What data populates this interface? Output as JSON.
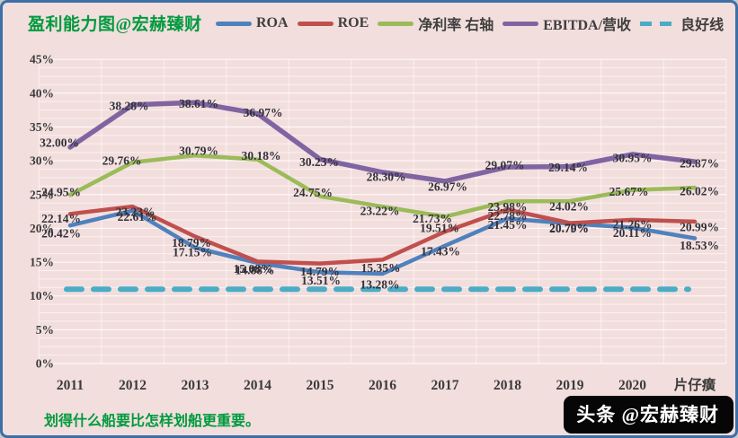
{
  "header": {
    "title": "盈利能力图@宏赫臻财",
    "legend": [
      {
        "label": "ROA",
        "color": "#4f81bd",
        "dashed": false
      },
      {
        "label": "ROE",
        "color": "#c0504d",
        "dashed": false
      },
      {
        "label": "净利率 右轴",
        "color": "#9bbb59",
        "dashed": false
      },
      {
        "label": "EBITDA/营收",
        "color": "#8064a2",
        "dashed": false
      },
      {
        "label": "良好线",
        "color": "#4bacc6",
        "dashed": true
      }
    ]
  },
  "chart_data": {
    "type": "line",
    "title": "盈利能力图@宏赫臻财",
    "categories": [
      "2011",
      "2012",
      "2013",
      "2014",
      "2015",
      "2016",
      "2017",
      "2018",
      "2019",
      "2020",
      "片仔癀"
    ],
    "series": [
      {
        "name": "ROA",
        "color": "#4f81bd",
        "dashed": false,
        "show_labels": true,
        "values": [
          20.42,
          22.61,
          17.15,
          14.88,
          13.51,
          13.28,
          17.43,
          21.45,
          20.7,
          20.11,
          18.53
        ]
      },
      {
        "name": "ROE",
        "color": "#c0504d",
        "dashed": false,
        "show_labels": true,
        "values": [
          22.14,
          23.23,
          18.79,
          15.08,
          14.79,
          15.35,
          19.51,
          22.78,
          20.79,
          21.26,
          20.99
        ]
      },
      {
        "name": "净利率 右轴",
        "color": "#9bbb59",
        "dashed": false,
        "show_labels": true,
        "values": [
          24.95,
          29.76,
          30.79,
          30.18,
          24.75,
          23.22,
          21.73,
          23.98,
          24.02,
          25.67,
          26.02
        ]
      },
      {
        "name": "EBITDA/营收",
        "color": "#8064a2",
        "dashed": false,
        "show_labels": true,
        "values": [
          32.0,
          38.28,
          38.61,
          36.97,
          30.23,
          28.3,
          26.97,
          29.07,
          29.14,
          30.95,
          29.87
        ]
      },
      {
        "name": "良好线",
        "color": "#4bacc6",
        "dashed": true,
        "show_labels": false,
        "values": [
          11,
          11,
          11,
          11,
          11,
          11,
          11,
          11,
          11,
          11,
          11
        ]
      }
    ],
    "ylim": [
      0,
      45
    ],
    "ytick_step": 5,
    "ytick_format": "percent",
    "label_format": "percent2",
    "grid": true,
    "legend_position": "top"
  },
  "footer": {
    "quote": "划得什么船要比怎样划船更重要。",
    "watermark": "头条 @宏赫臻财"
  }
}
